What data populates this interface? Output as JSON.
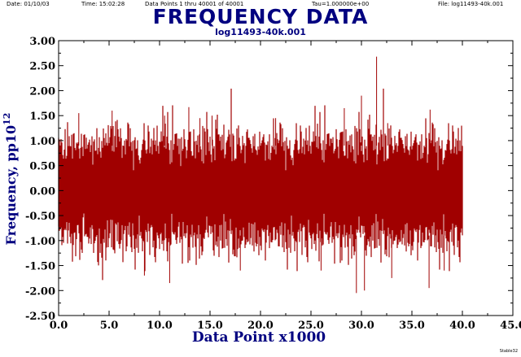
{
  "header": {
    "date": "Date: 01/10/03",
    "time": "Time: 15:02:28",
    "points": "Data Points 1 thru 40001 of 40001",
    "tau": "Tau=1.000000e+00",
    "file": "File: log11493-40k.001"
  },
  "credit": "Stable32",
  "colors": {
    "series": "#a00000",
    "title": "#000080",
    "axis": "#000000"
  },
  "chart_data": {
    "type": "line",
    "title": "FREQUENCY DATA",
    "subtitle": "log11493-40k.001",
    "xlabel": "Data Point x1000",
    "ylabel_main": "Frequency, pp10",
    "ylabel_sup": "12",
    "xlim": [
      0.0,
      45.0
    ],
    "ylim": [
      -2.5,
      3.0
    ],
    "x_ticks": [
      "0.0",
      "5.0",
      "10.0",
      "15.0",
      "20.0",
      "25.0",
      "30.0",
      "35.0",
      "40.0",
      "45.0"
    ],
    "y_ticks": [
      "-2.50",
      "-2.00",
      "-1.50",
      "-1.00",
      "-0.50",
      "0.00",
      "0.50",
      "1.00",
      "1.50",
      "2.00",
      "2.50",
      "3.00"
    ],
    "grid": false,
    "series": [
      {
        "n_points": 40001,
        "x_range": [
          0.0,
          40.0
        ],
        "mean": 0.0,
        "typical_band": [
          -1.0,
          1.0
        ],
        "approx_min": -2.05,
        "approx_max": 2.68,
        "notable_peaks": [
          {
            "x": 2.0,
            "y": 1.55
          },
          {
            "x": 5.3,
            "y": 1.6
          },
          {
            "x": 10.5,
            "y": 1.5
          },
          {
            "x": 12.9,
            "y": 1.67
          },
          {
            "x": 14.0,
            "y": 1.45
          },
          {
            "x": 15.2,
            "y": 1.5
          },
          {
            "x": 21.5,
            "y": 1.45
          },
          {
            "x": 28.3,
            "y": 1.65
          },
          {
            "x": 30.0,
            "y": 1.9
          },
          {
            "x": 31.5,
            "y": 2.68
          },
          {
            "x": 32.6,
            "y": 1.35
          },
          {
            "x": 36.8,
            "y": 1.62
          }
        ],
        "notable_troughs": [
          {
            "x": 8.5,
            "y": -1.7
          },
          {
            "x": 11.0,
            "y": -1.85
          },
          {
            "x": 18.0,
            "y": -1.6
          },
          {
            "x": 26.0,
            "y": -1.6
          },
          {
            "x": 29.5,
            "y": -2.05
          },
          {
            "x": 30.3,
            "y": -2.0
          },
          {
            "x": 33.0,
            "y": -1.75
          },
          {
            "x": 36.7,
            "y": -1.95
          },
          {
            "x": 38.2,
            "y": -1.6
          }
        ]
      }
    ]
  }
}
